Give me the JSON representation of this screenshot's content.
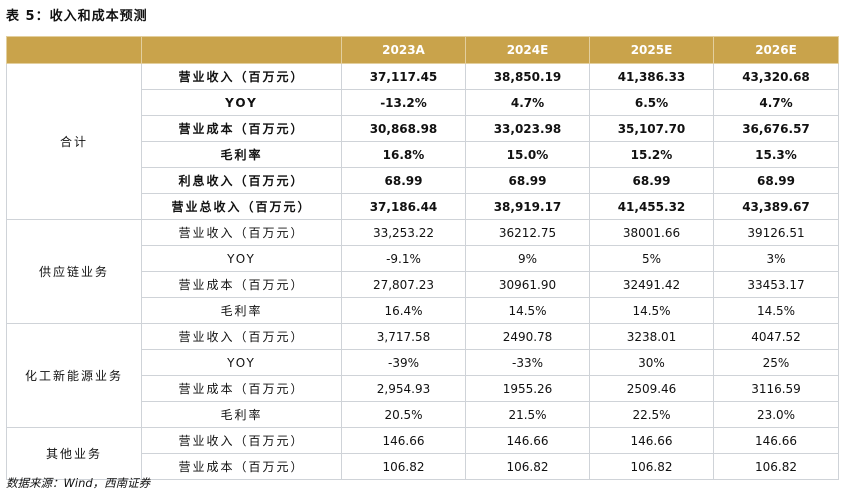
{
  "title": "表 5：收入和成本预测",
  "header": {
    "years": [
      "2023A",
      "2024E",
      "2025E",
      "2026E"
    ]
  },
  "groups": [
    {
      "name": "合计",
      "bold": true,
      "rows": [
        {
          "label": "营业收入（百万元）",
          "values": [
            "37,117.45",
            "38,850.19",
            "41,386.33",
            "43,320.68"
          ]
        },
        {
          "label": "YOY",
          "values": [
            "-13.2%",
            "4.7%",
            "6.5%",
            "4.7%"
          ]
        },
        {
          "label": "营业成本（百万元）",
          "values": [
            "30,868.98",
            "33,023.98",
            "35,107.70",
            "36,676.57"
          ]
        },
        {
          "label": "毛利率",
          "values": [
            "16.8%",
            "15.0%",
            "15.2%",
            "15.3%"
          ]
        },
        {
          "label": "利息收入（百万元）",
          "values": [
            "68.99",
            "68.99",
            "68.99",
            "68.99"
          ]
        },
        {
          "label": "营业总收入（百万元）",
          "values": [
            "37,186.44",
            "38,919.17",
            "41,455.32",
            "43,389.67"
          ]
        }
      ]
    },
    {
      "name": "供应链业务",
      "bold": false,
      "rows": [
        {
          "label": "营业收入（百万元）",
          "values": [
            "33,253.22",
            "36212.75",
            "38001.66",
            "39126.51"
          ]
        },
        {
          "label": "YOY",
          "values": [
            "-9.1%",
            "9%",
            "5%",
            "3%"
          ]
        },
        {
          "label": "营业成本（百万元）",
          "values": [
            "27,807.23",
            "30961.90",
            "32491.42",
            "33453.17"
          ]
        },
        {
          "label": "毛利率",
          "values": [
            "16.4%",
            "14.5%",
            "14.5%",
            "14.5%"
          ]
        }
      ]
    },
    {
      "name": "化工新能源业务",
      "bold": false,
      "rows": [
        {
          "label": "营业收入（百万元）",
          "values": [
            "3,717.58",
            "2490.78",
            "3238.01",
            "4047.52"
          ]
        },
        {
          "label": "YOY",
          "values": [
            "-39%",
            "-33%",
            "30%",
            "25%"
          ]
        },
        {
          "label": "营业成本（百万元）",
          "values": [
            "2,954.93",
            "1955.26",
            "2509.46",
            "3116.59"
          ]
        },
        {
          "label": "毛利率",
          "values": [
            "20.5%",
            "21.5%",
            "22.5%",
            "23.0%"
          ]
        }
      ]
    },
    {
      "name": "其他业务",
      "bold": false,
      "rows": [
        {
          "label": "营业收入（百万元）",
          "values": [
            "146.66",
            "146.66",
            "146.66",
            "146.66"
          ]
        },
        {
          "label": "营业成本（百万元）",
          "values": [
            "106.82",
            "106.82",
            "106.82",
            "106.82"
          ]
        }
      ]
    }
  ],
  "source": "数据来源：Wind，西南证券"
}
